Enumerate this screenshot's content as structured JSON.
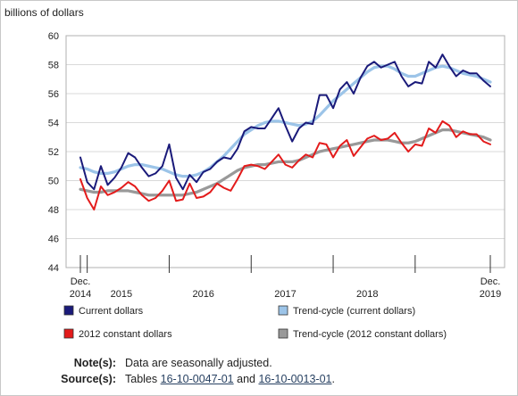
{
  "chart_data": {
    "type": "line",
    "ylabel": "billions of dollars",
    "ylim": [
      44,
      60
    ],
    "yticks": [
      44,
      46,
      48,
      50,
      52,
      54,
      56,
      58,
      60
    ],
    "x_start": "2014-12",
    "x_end": "2019-12",
    "grid": true,
    "legend_position": "bottom",
    "x_tick_labels": [
      {
        "date": "2014-12",
        "lines": [
          "Dec.",
          "2014"
        ]
      },
      {
        "date": "2015-06",
        "lines": [
          "2015"
        ]
      },
      {
        "date": "2016-06",
        "lines": [
          "2016"
        ]
      },
      {
        "date": "2017-06",
        "lines": [
          "2017"
        ]
      },
      {
        "date": "2018-06",
        "lines": [
          "2018"
        ]
      },
      {
        "date": "2019-12",
        "lines": [
          "Dec.",
          "2019"
        ]
      }
    ],
    "series": [
      {
        "name": "Current dollars",
        "color": "#1a1a7a",
        "style": "solid",
        "values": [
          51.6,
          49.9,
          49.4,
          51.0,
          49.7,
          50.2,
          50.9,
          51.9,
          51.6,
          50.9,
          50.3,
          50.5,
          51.0,
          52.5,
          50.2,
          49.4,
          50.4,
          49.9,
          50.6,
          50.8,
          51.3,
          51.6,
          51.5,
          52.2,
          53.4,
          53.7,
          53.6,
          53.6,
          54.3,
          55.0,
          53.8,
          52.7,
          53.6,
          54.0,
          53.9,
          55.9,
          55.9,
          55.0,
          56.3,
          56.8,
          56.0,
          57.1,
          57.9,
          58.2,
          57.8,
          58.0,
          58.2,
          57.2,
          56.5,
          56.8,
          56.7,
          58.2,
          57.8,
          58.7,
          57.9,
          57.2,
          57.6,
          57.4,
          57.4,
          56.9,
          56.5
        ]
      },
      {
        "name": "Trend-cycle (current dollars)",
        "color": "#9cc4e8",
        "style": "solid",
        "values": [
          50.9,
          50.8,
          50.6,
          50.5,
          50.5,
          50.6,
          50.8,
          51.0,
          51.1,
          51.1,
          51.0,
          50.9,
          50.8,
          50.6,
          50.4,
          50.3,
          50.3,
          50.4,
          50.6,
          50.9,
          51.3,
          51.7,
          52.2,
          52.7,
          53.2,
          53.5,
          53.8,
          54.0,
          54.1,
          54.1,
          54.0,
          53.9,
          53.8,
          53.9,
          54.1,
          54.5,
          55.0,
          55.5,
          55.9,
          56.3,
          56.7,
          57.1,
          57.5,
          57.8,
          57.9,
          57.9,
          57.7,
          57.4,
          57.2,
          57.2,
          57.4,
          57.6,
          57.8,
          57.9,
          57.8,
          57.6,
          57.4,
          57.3,
          57.2,
          57.0,
          56.8
        ]
      },
      {
        "name": "2012 constant dollars",
        "color": "#e31b1b",
        "style": "solid",
        "values": [
          50.1,
          48.8,
          48.0,
          49.6,
          49.0,
          49.2,
          49.5,
          49.9,
          49.6,
          49.0,
          48.6,
          48.8,
          49.3,
          50.0,
          48.6,
          48.7,
          49.8,
          48.8,
          48.9,
          49.2,
          49.8,
          49.5,
          49.3,
          50.1,
          51.0,
          51.1,
          51.0,
          50.8,
          51.3,
          51.8,
          51.1,
          50.9,
          51.4,
          51.8,
          51.6,
          52.6,
          52.5,
          51.6,
          52.4,
          52.8,
          51.7,
          52.3,
          52.9,
          53.1,
          52.8,
          52.9,
          53.3,
          52.6,
          52.0,
          52.5,
          52.4,
          53.6,
          53.3,
          54.1,
          53.8,
          53.0,
          53.4,
          53.2,
          53.2,
          52.7,
          52.5
        ]
      },
      {
        "name": "Trend-cycle (2012 constant dollars)",
        "color": "#999999",
        "style": "solid",
        "values": [
          49.4,
          49.3,
          49.2,
          49.2,
          49.3,
          49.3,
          49.3,
          49.3,
          49.2,
          49.1,
          49.0,
          49.0,
          49.0,
          49.0,
          49.0,
          49.0,
          49.1,
          49.2,
          49.4,
          49.6,
          49.8,
          50.1,
          50.4,
          50.7,
          50.9,
          51.0,
          51.1,
          51.1,
          51.2,
          51.3,
          51.3,
          51.3,
          51.4,
          51.6,
          51.8,
          52.0,
          52.1,
          52.2,
          52.3,
          52.4,
          52.5,
          52.6,
          52.7,
          52.8,
          52.8,
          52.8,
          52.7,
          52.6,
          52.6,
          52.7,
          52.9,
          53.1,
          53.3,
          53.5,
          53.5,
          53.4,
          53.3,
          53.2,
          53.1,
          53.0,
          52.8
        ]
      }
    ]
  },
  "notes": {
    "note_label": "Note(s):",
    "note_text": "Data are seasonally adjusted.",
    "source_label": "Source(s):",
    "source_prefix": "Tables",
    "source_link1": "16-10-0047-01",
    "source_and": "and",
    "source_link2": "16-10-0013-01",
    "source_end": "."
  }
}
